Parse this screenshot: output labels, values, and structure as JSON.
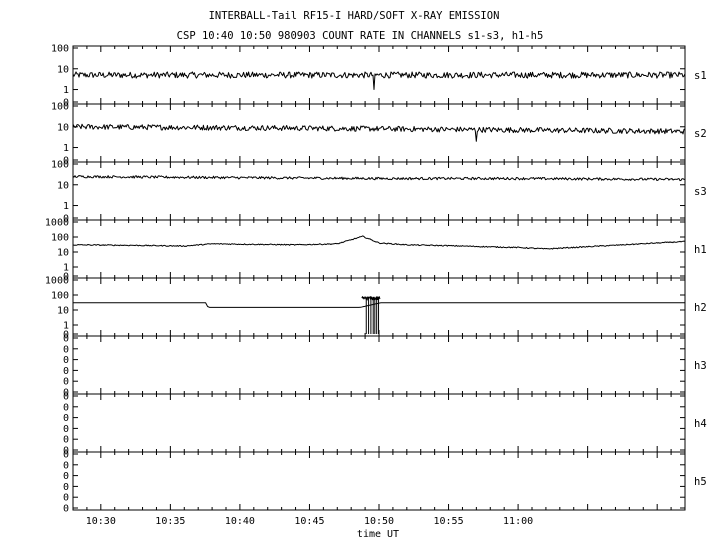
{
  "chart_data": {
    "type": "line",
    "title": "INTERBALL-Tail RF15-I HARD/SOFT X-RAY EMISSION",
    "subtitle": "CSP 10:40 10:50 980903  COUNT RATE IN CHANNELS s1-s3, h1-h5",
    "xlabel": "time UT",
    "x_range": [
      "10:28",
      "11:12"
    ],
    "x_ticks": [
      "10:30",
      "10:35",
      "10:40",
      "10:45",
      "10:50",
      "10:55",
      "11:00"
    ],
    "y_scale": "log",
    "series": [
      {
        "name": "s1",
        "ylim_log": [
          -0.6,
          2
        ],
        "y_ticks": [
          {
            "label": "100",
            "log": 2
          },
          {
            "label": "10",
            "log": 1
          },
          {
            "label": "1",
            "log": 0
          },
          {
            "label": "0",
            "log": -0.6
          }
        ],
        "x": [
          "10:28",
          "10:35",
          "10:45",
          "10:49",
          "10:50",
          "11:05",
          "11:12"
        ],
        "y": [
          5,
          5,
          5,
          5,
          5,
          5,
          5
        ],
        "noise_log": 0.15,
        "dips": [
          {
            "time": "10:49:40",
            "value": 1
          }
        ]
      },
      {
        "name": "s2",
        "ylim_log": [
          -0.6,
          2
        ],
        "y_ticks": [
          {
            "label": "100",
            "log": 2
          },
          {
            "label": "10",
            "log": 1
          },
          {
            "label": "1",
            "log": 0
          },
          {
            "label": "0",
            "log": -0.6
          }
        ],
        "x": [
          "10:28",
          "10:40",
          "10:50",
          "11:00",
          "11:12"
        ],
        "y": [
          10,
          9,
          8,
          7,
          6
        ],
        "noise_log": 0.13,
        "dips": [
          {
            "time": "10:57",
            "value": 2
          }
        ]
      },
      {
        "name": "s3",
        "ylim_log": [
          -0.6,
          2
        ],
        "y_ticks": [
          {
            "label": "100",
            "log": 2
          },
          {
            "label": "10",
            "log": 1
          },
          {
            "label": "1",
            "log": 0
          },
          {
            "label": "0",
            "log": -0.6
          }
        ],
        "x": [
          "10:28",
          "10:40",
          "10:50",
          "11:00",
          "11:12"
        ],
        "y": [
          25,
          22,
          20,
          20,
          18
        ],
        "noise_log": 0.06,
        "dips": []
      },
      {
        "name": "h1",
        "ylim_log": [
          -0.6,
          3
        ],
        "y_ticks": [
          {
            "label": "1000",
            "log": 3
          },
          {
            "label": "100",
            "log": 2
          },
          {
            "label": "10",
            "log": 1
          },
          {
            "label": "1",
            "log": 0
          },
          {
            "label": "0",
            "log": -0.6
          }
        ],
        "x": [
          "10:28",
          "10:32",
          "10:36",
          "10:38",
          "10:44",
          "10:47",
          "10:48:50",
          "10:50",
          "10:52",
          "10:56",
          "10:58",
          "11:00",
          "11:02",
          "11:12"
        ],
        "y": [
          30,
          28,
          25,
          35,
          30,
          35,
          110,
          40,
          30,
          25,
          22,
          20,
          16,
          50
        ],
        "noise_log": 0.035,
        "dips": []
      },
      {
        "name": "h2",
        "ylim_log": [
          -0.6,
          3
        ],
        "y_ticks": [
          {
            "label": "1000",
            "log": 3
          },
          {
            "label": "100",
            "log": 2
          },
          {
            "label": "10",
            "log": 1
          },
          {
            "label": "1",
            "log": 0
          },
          {
            "label": "0",
            "log": -0.6
          }
        ],
        "x": [
          "10:28",
          "10:37:40",
          "10:37:41",
          "10:48:40",
          "10:50:05",
          "11:12"
        ],
        "y": [
          30,
          30,
          15,
          15,
          30,
          30
        ],
        "noise_log": 0,
        "burst": {
          "start": "10:48:45",
          "end": "10:50:05",
          "value": 60,
          "dropouts": [
            "10:49:05",
            "10:49:15",
            "10:49:25",
            "10:49:35",
            "10:49:42",
            "10:49:50",
            "10:49:58"
          ]
        },
        "dips": []
      },
      {
        "name": "h3",
        "ylim_log": [
          0,
          1
        ],
        "y_ticks": [
          {
            "label": "0",
            "log": 1
          },
          {
            "label": "0",
            "log": 0.8
          },
          {
            "label": "0",
            "log": 0.6
          },
          {
            "label": "0",
            "log": 0.4
          },
          {
            "label": "0",
            "log": 0.2
          },
          {
            "label": "0",
            "log": 0
          }
        ],
        "x": [],
        "y": [],
        "noise_log": 0,
        "dips": []
      },
      {
        "name": "h4",
        "ylim_log": [
          0,
          1
        ],
        "y_ticks": [
          {
            "label": "0",
            "log": 1
          },
          {
            "label": "0",
            "log": 0.8
          },
          {
            "label": "0",
            "log": 0.6
          },
          {
            "label": "0",
            "log": 0.4
          },
          {
            "label": "0",
            "log": 0.2
          },
          {
            "label": "0",
            "log": 0
          }
        ],
        "x": [],
        "y": [],
        "noise_log": 0,
        "dips": []
      },
      {
        "name": "h5",
        "ylim_log": [
          0,
          1
        ],
        "y_ticks": [
          {
            "label": "0",
            "log": 1
          },
          {
            "label": "0",
            "log": 0.8
          },
          {
            "label": "0",
            "log": 0.6
          },
          {
            "label": "0",
            "log": 0.4
          },
          {
            "label": "0",
            "log": 0.2
          },
          {
            "label": "0",
            "log": 0
          }
        ],
        "x": [],
        "y": [],
        "noise_log": 0,
        "dips": []
      }
    ]
  }
}
